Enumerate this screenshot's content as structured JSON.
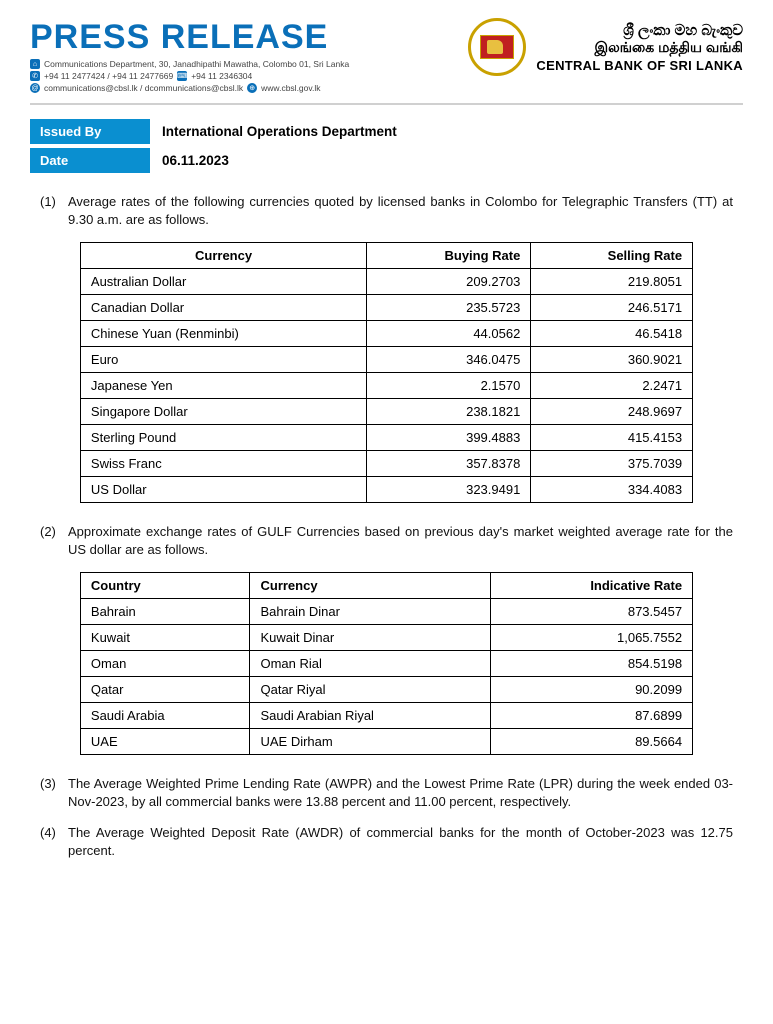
{
  "header": {
    "title": "PRESS RELEASE",
    "address": "Communications Department, 30, Janadhipathi Mawatha, Colombo 01, Sri Lanka",
    "phone1": "+94 11 2477424 / +94 11 2477669",
    "phone2": "+94 11 2346304",
    "email": "communications@cbsl.lk / dcommunications@cbsl.lk",
    "web": "www.cbsl.gov.lk",
    "bank_si": "ශ්‍රී ලංකා මහ බැංකුව",
    "bank_ta": "இலங்கை மத்திய வங்கி",
    "bank_en": "CENTRAL BANK OF SRI LANKA"
  },
  "meta": {
    "issued_by_label": "Issued By",
    "issued_by_value": "International Operations Department",
    "date_label": "Date",
    "date_value": "06.11.2023"
  },
  "section1": {
    "num": "(1)",
    "text": "Average rates of the following currencies quoted by licensed banks in Colombo for Telegraphic Transfers (TT) at 9.30 a.m. are as follows.",
    "columns": {
      "c1": "Currency",
      "c2": "Buying Rate",
      "c3": "Selling Rate"
    },
    "rows": [
      {
        "currency": "Australian Dollar",
        "buy": "209.2703",
        "sell": "219.8051"
      },
      {
        "currency": "Canadian Dollar",
        "buy": "235.5723",
        "sell": "246.5171"
      },
      {
        "currency": "Chinese Yuan (Renminbi)",
        "buy": "44.0562",
        "sell": "46.5418"
      },
      {
        "currency": "Euro",
        "buy": "346.0475",
        "sell": "360.9021"
      },
      {
        "currency": "Japanese Yen",
        "buy": "2.1570",
        "sell": "2.2471"
      },
      {
        "currency": "Singapore Dollar",
        "buy": "238.1821",
        "sell": "248.9697"
      },
      {
        "currency": "Sterling Pound",
        "buy": "399.4883",
        "sell": "415.4153"
      },
      {
        "currency": "Swiss Franc",
        "buy": "357.8378",
        "sell": "375.7039"
      },
      {
        "currency": "US Dollar",
        "buy": "323.9491",
        "sell": "334.4083"
      }
    ]
  },
  "section2": {
    "num": "(2)",
    "text": "Approximate exchange rates of GULF Currencies based on previous day's market weighted average rate for the US dollar are as follows.",
    "columns": {
      "c1": "Country",
      "c2": "Currency",
      "c3": "Indicative Rate"
    },
    "rows": [
      {
        "country": "Bahrain",
        "currency": "Bahrain Dinar",
        "rate": "873.5457"
      },
      {
        "country": "Kuwait",
        "currency": "Kuwait Dinar",
        "rate": "1,065.7552"
      },
      {
        "country": "Oman",
        "currency": "Oman Rial",
        "rate": "854.5198"
      },
      {
        "country": "Qatar",
        "currency": "Qatar Riyal",
        "rate": "90.2099"
      },
      {
        "country": "Saudi Arabia",
        "currency": "Saudi Arabian Riyal",
        "rate": "87.6899"
      },
      {
        "country": "UAE",
        "currency": "UAE Dirham",
        "rate": "89.5664"
      }
    ]
  },
  "section3": {
    "num": "(3)",
    "text": "The Average Weighted Prime Lending Rate (AWPR) and the Lowest Prime Rate (LPR) during the week ended 03-Nov-2023, by all commercial banks were 13.88 percent and 11.00 percent, respectively."
  },
  "section4": {
    "num": "(4)",
    "text": "The Average Weighted Deposit Rate (AWDR) of commercial banks for the month of October-2023 was 12.75 percent."
  },
  "styling": {
    "accent_color": "#0a8fd0",
    "title_color": "#0a6fb8",
    "border_color": "#000000",
    "body_font_size_pt": 10,
    "title_font_size_pt": 26
  }
}
